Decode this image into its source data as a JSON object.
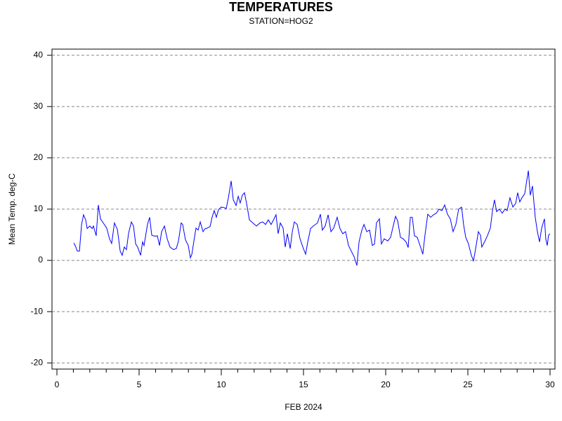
{
  "chart_data": {
    "type": "line",
    "title": "TEMPERATURES",
    "subtitle": "STATION=HOG2",
    "x_label": "FEB 2024",
    "y_label": "Mean Temp. deg-C",
    "xlim": [
      -0.3,
      30.3
    ],
    "ylim": [
      -21.2,
      41.2
    ],
    "xticks": [
      0,
      5,
      10,
      15,
      20,
      25,
      30
    ],
    "xminorticks": [
      1,
      2,
      3,
      4,
      6,
      7,
      8,
      9,
      11,
      12,
      13,
      14,
      16,
      17,
      18,
      19,
      21,
      22,
      23,
      24,
      26,
      27,
      28,
      29
    ],
    "yticks": [
      -20,
      -10,
      0,
      10,
      20,
      30,
      40
    ],
    "grid": true,
    "series": [
      {
        "name": "Mean Temp",
        "color": "#0000ff",
        "x": [
          1.03,
          1.15,
          1.24,
          1.37,
          1.5,
          1.62,
          1.75,
          1.84,
          2.0,
          2.14,
          2.22,
          2.39,
          2.52,
          2.65,
          2.82,
          3.03,
          3.2,
          3.33,
          3.5,
          3.68,
          3.85,
          3.97,
          4.1,
          4.23,
          4.36,
          4.53,
          4.66,
          4.79,
          4.91,
          5.09,
          5.21,
          5.3,
          5.51,
          5.64,
          5.77,
          5.98,
          6.11,
          6.24,
          6.37,
          6.54,
          6.71,
          6.88,
          7.09,
          7.26,
          7.39,
          7.56,
          7.65,
          7.82,
          7.99,
          8.12,
          8.21,
          8.33,
          8.46,
          8.59,
          8.72,
          8.89,
          9.02,
          9.15,
          9.32,
          9.44,
          9.57,
          9.7,
          9.83,
          10.0,
          10.17,
          10.3,
          10.43,
          10.6,
          10.73,
          10.9,
          11.03,
          11.15,
          11.28,
          11.41,
          11.54,
          11.71,
          11.92,
          12.14,
          12.35,
          12.52,
          12.69,
          12.86,
          13.03,
          13.21,
          13.33,
          13.46,
          13.59,
          13.76,
          13.89,
          14.02,
          14.19,
          14.32,
          14.44,
          14.62,
          14.79,
          14.96,
          15.13,
          15.26,
          15.43,
          15.6,
          15.85,
          16.03,
          16.15,
          16.32,
          16.5,
          16.67,
          16.84,
          17.05,
          17.22,
          17.39,
          17.56,
          17.74,
          17.91,
          18.08,
          18.25,
          18.38,
          18.55,
          18.68,
          18.85,
          19.02,
          19.19,
          19.32,
          19.44,
          19.62,
          19.74,
          19.91,
          20.13,
          20.3,
          20.43,
          20.6,
          20.73,
          20.9,
          21.07,
          21.24,
          21.37,
          21.5,
          21.62,
          21.75,
          21.92,
          22.09,
          22.26,
          22.39,
          22.56,
          22.74,
          22.91,
          23.08,
          23.25,
          23.42,
          23.59,
          23.76,
          23.93,
          24.1,
          24.27,
          24.44,
          24.62,
          24.74,
          24.87,
          25.04,
          25.21,
          25.34,
          25.47,
          25.64,
          25.77,
          25.85,
          26.03,
          26.2,
          26.37,
          26.5,
          26.62,
          26.75,
          26.92,
          27.09,
          27.26,
          27.39,
          27.56,
          27.74,
          27.91,
          28.03,
          28.16,
          28.29,
          28.46,
          28.68,
          28.8,
          28.93,
          29.1,
          29.23,
          29.36,
          29.49,
          29.66,
          29.74,
          29.83,
          29.91,
          30.0
        ],
        "values": [
          3.4,
          2.6,
          1.8,
          1.8,
          7,
          8.9,
          7.9,
          6.2,
          6.7,
          6.2,
          6.7,
          4.8,
          10.8,
          8.1,
          7.3,
          6.3,
          4.2,
          3.3,
          7.3,
          6,
          1.8,
          1.0,
          2.6,
          2.1,
          5.3,
          7.5,
          6.7,
          3.2,
          2.6,
          1.0,
          3.6,
          2.9,
          7,
          8.4,
          4.9,
          4.7,
          4.8,
          2.9,
          5.6,
          6.7,
          4.2,
          2.6,
          2.1,
          2.3,
          3.7,
          7.3,
          7,
          4,
          2.9,
          0.5,
          1.2,
          3.7,
          6.3,
          5.9,
          7.5,
          5.6,
          6.2,
          6.3,
          6.6,
          8.4,
          9.7,
          8.4,
          9.9,
          10.4,
          10.3,
          10.1,
          12.2,
          15.5,
          11.8,
          10.7,
          12.5,
          11.2,
          12.7,
          13.2,
          11.1,
          7.9,
          7.3,
          6.7,
          7.3,
          7.5,
          7.0,
          7.9,
          7.0,
          8.1,
          8.9,
          5.2,
          7.3,
          6.3,
          2.6,
          5.2,
          2.3,
          5.6,
          7.5,
          7.0,
          4.2,
          2.6,
          1.2,
          3.6,
          6.2,
          6.7,
          7.3,
          9.0,
          5.9,
          6.7,
          8.9,
          5.6,
          6.3,
          8.4,
          6.2,
          5.2,
          5.6,
          2.9,
          1.8,
          0.7,
          -1.0,
          3.6,
          5.9,
          7.0,
          5.6,
          5.9,
          2.9,
          3.2,
          7.3,
          8.1,
          3.2,
          4.2,
          3.8,
          4.5,
          6.3,
          8.6,
          7.7,
          4.5,
          4.2,
          3.6,
          2.5,
          8.4,
          8.4,
          4.8,
          4.5,
          2.9,
          1.2,
          4.9,
          9.0,
          8.4,
          8.9,
          9.2,
          10.0,
          9.7,
          10.8,
          9.0,
          8.1,
          5.6,
          7.0,
          10.0,
          10.4,
          7.0,
          4.5,
          3.2,
          1.0,
          -0.1,
          2.2,
          5.6,
          4.9,
          2.6,
          3.7,
          4.9,
          6.3,
          9.7,
          11.8,
          9.5,
          10.0,
          9.2,
          10.0,
          9.7,
          12.2,
          10.4,
          11.1,
          13.2,
          11.4,
          12.2,
          13.0,
          17.5,
          12.7,
          14.5,
          8.4,
          5.6,
          3.6,
          6.3,
          8.1,
          4.2,
          2.9,
          4.9,
          5.2
        ]
      }
    ]
  }
}
